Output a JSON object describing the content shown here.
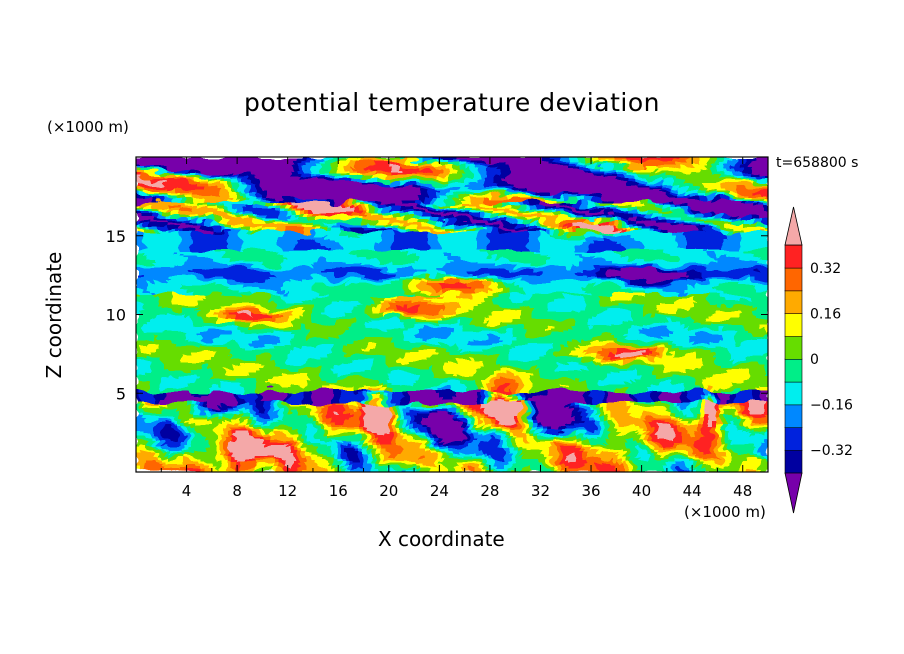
{
  "chart_data": {
    "type": "heatmap",
    "title": "potential temperature deviation",
    "xlabel": "X coordinate",
    "ylabel": "Z coordinate",
    "x_unit_label": "(×1000 m)",
    "y_unit_label": "(×1000 m)",
    "time_label": "t=658800 s",
    "xlim": [
      0,
      50
    ],
    "ylim": [
      0,
      20
    ],
    "x_ticks": [
      4,
      8,
      12,
      16,
      20,
      24,
      28,
      32,
      36,
      40,
      44,
      48
    ],
    "y_ticks": [
      5,
      10,
      15
    ],
    "colorbar": {
      "levels": [
        -0.4,
        -0.32,
        -0.24,
        -0.16,
        -0.08,
        0,
        0.08,
        0.16,
        0.24,
        0.32,
        0.4
      ],
      "tick_labels": [
        "0.32",
        "0.16",
        "0",
        "−0.16",
        "−0.32"
      ],
      "tick_values": [
        0.32,
        0.16,
        0,
        -0.16,
        -0.32
      ],
      "colors": [
        "#7700aa",
        "#0000a0",
        "#0022dd",
        "#0088ff",
        "#00eeee",
        "#00ee88",
        "#66dd00",
        "#ffff00",
        "#ffaa00",
        "#ff6600",
        "#ff2222",
        "#f4a8a8"
      ],
      "extend": "both"
    }
  }
}
